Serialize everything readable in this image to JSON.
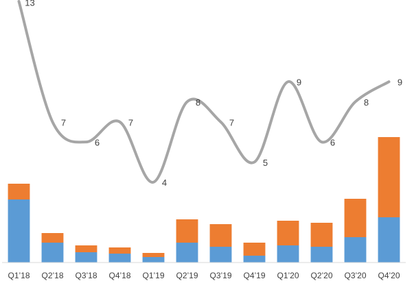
{
  "chart_data": {
    "type": "bar",
    "stacked": true,
    "categories": [
      "Q1’18",
      "Q2’18",
      "Q3’18",
      "Q4’18",
      "Q1’19",
      "Q2’19",
      "Q3’19",
      "Q4’19",
      "Q1’20",
      "Q2’20",
      "Q3’20",
      "Q4’20"
    ],
    "series": [
      {
        "color": "#5b9bd5",
        "values": [
          92,
          29,
          15,
          13,
          8,
          29,
          23,
          10,
          25,
          23,
          37,
          66
        ]
      },
      {
        "color": "#ed7d31",
        "values": [
          23,
          14,
          10,
          9,
          6,
          34,
          33,
          19,
          36,
          35,
          56,
          117
        ]
      },
      {
        "type": "line",
        "axis": "y2",
        "color": "#a6a6a6",
        "values": [
          13,
          7,
          6,
          7,
          4,
          8,
          7,
          5,
          9,
          6,
          8,
          9
        ]
      }
    ],
    "ylim": [
      0,
      381
    ],
    "y2lim": [
      0,
      13
    ]
  }
}
